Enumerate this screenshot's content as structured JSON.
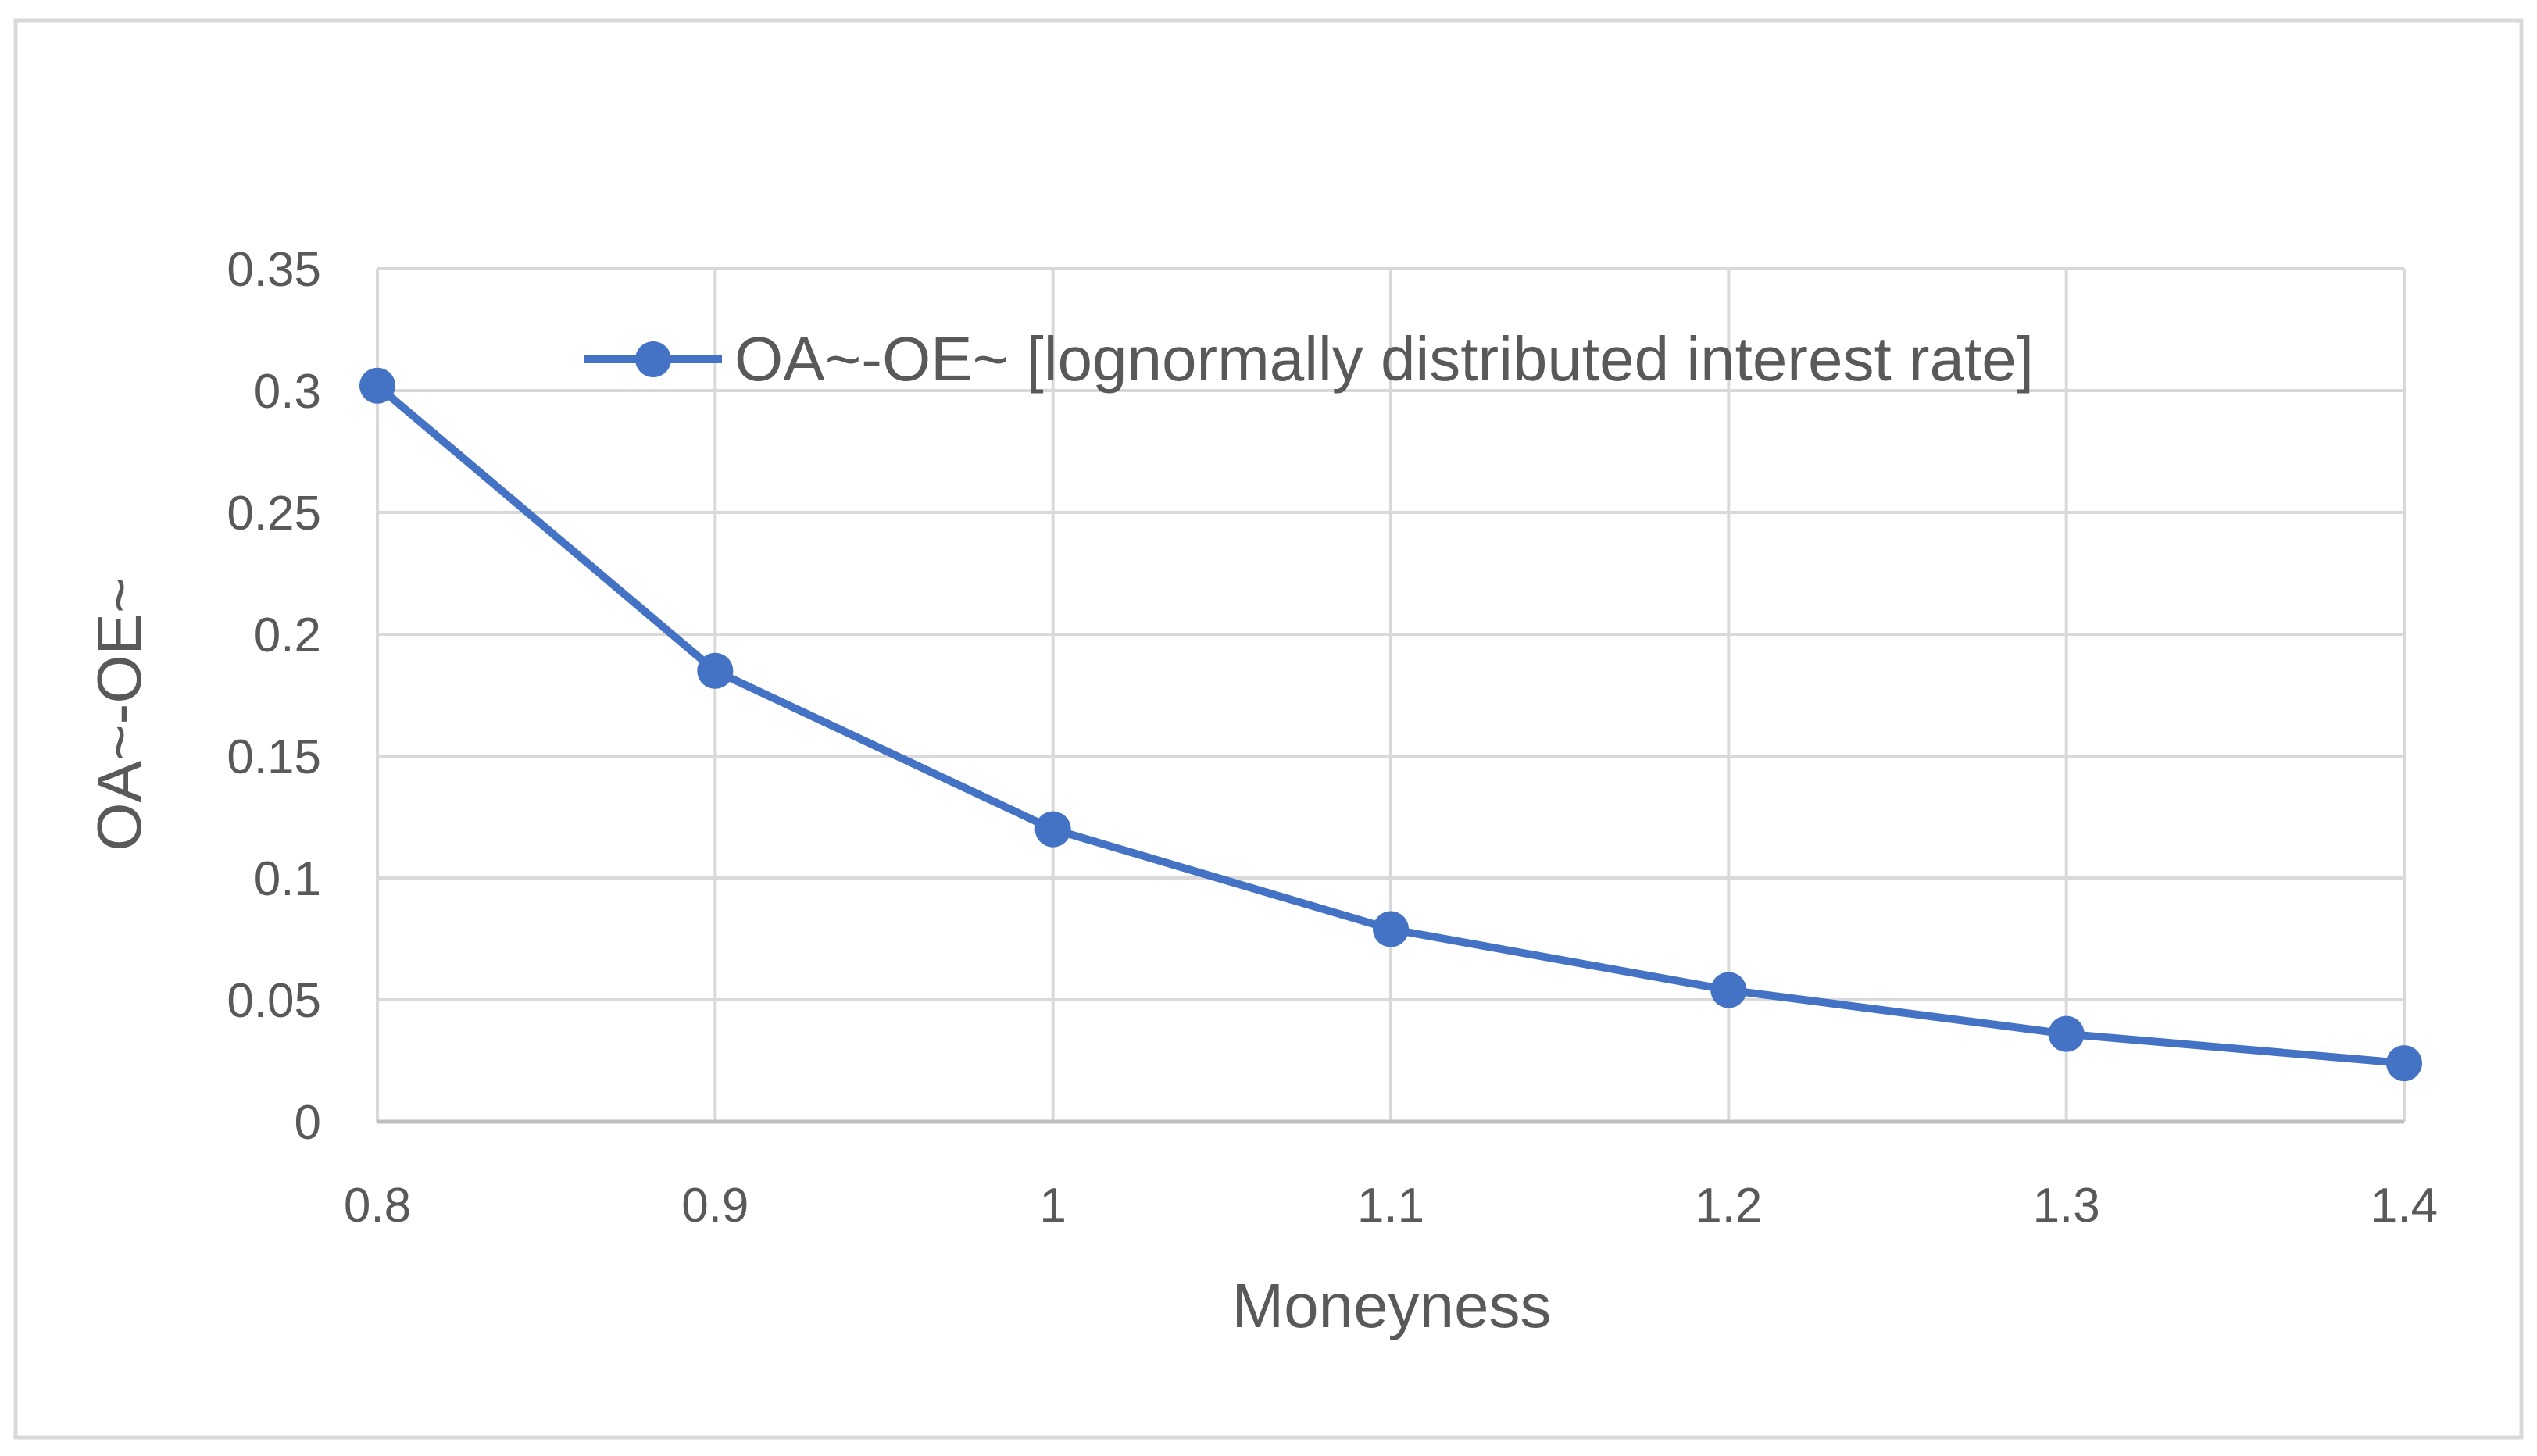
{
  "chart_data": {
    "type": "line",
    "title": "",
    "xlabel": "Moneyness",
    "ylabel": "OA~-OE~",
    "x": [
      0.8,
      0.9,
      1.0,
      1.1,
      1.2,
      1.3,
      1.4
    ],
    "x_tick_labels": [
      "0.8",
      "0.9",
      "1",
      "1.1",
      "1.2",
      "1.3",
      "1.4"
    ],
    "y_tick_values": [
      0,
      0.05,
      0.1,
      0.15,
      0.2,
      0.25,
      0.3,
      0.35
    ],
    "y_tick_labels": [
      "0",
      "0.05",
      "0.1",
      "0.15",
      "0.2",
      "0.25",
      "0.3",
      "0.35"
    ],
    "xlim": [
      0.8,
      1.4
    ],
    "ylim": [
      0,
      0.35
    ],
    "grid": true,
    "legend_position": "top",
    "series": [
      {
        "name": "OA~-OE~ [lognormally distributed interest rate]",
        "values": [
          0.302,
          0.185,
          0.12,
          0.079,
          0.054,
          0.036,
          0.024
        ],
        "color": "#4472C4",
        "marker": "circle"
      }
    ]
  },
  "colors": {
    "grid": "#D9D9D9",
    "axis_text": "#595959",
    "frame": "#D9D9D9"
  }
}
